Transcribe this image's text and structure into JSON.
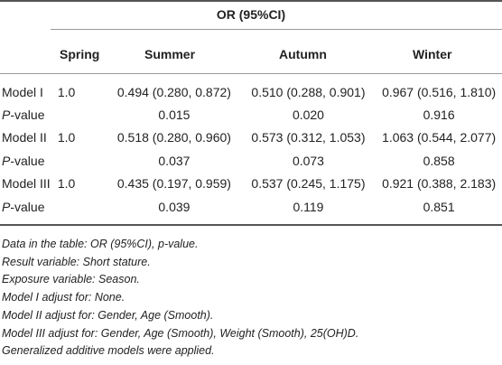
{
  "table": {
    "group_header": "OR (95%CI)",
    "columns": [
      "Spring",
      "Summer",
      "Autumn",
      "Winter"
    ],
    "rows": [
      {
        "label": "Model I",
        "cells": [
          "1.0",
          "0.494 (0.280, 0.872)",
          "0.510 (0.288, 0.901)",
          "0.967 (0.516, 1.810)"
        ]
      },
      {
        "label_prefix": "P",
        "label_suffix": "-value",
        "cells": [
          "",
          "0.015",
          "0.020",
          "0.916"
        ]
      },
      {
        "label": "Model II",
        "cells": [
          "1.0",
          "0.518 (0.280, 0.960)",
          "0.573 (0.312, 1.053)",
          "1.063 (0.544, 2.077)"
        ]
      },
      {
        "label_prefix": "P",
        "label_suffix": "-value",
        "cells": [
          "",
          "0.037",
          "0.073",
          "0.858"
        ]
      },
      {
        "label": "Model III",
        "cells": [
          "1.0",
          "0.435 (0.197, 0.959)",
          "0.537 (0.245, 1.175)",
          "0.921 (0.388, 2.183)"
        ]
      },
      {
        "label_prefix": "P",
        "label_suffix": "-value",
        "cells": [
          "",
          "0.039",
          "0.119",
          "0.851"
        ]
      }
    ]
  },
  "footnotes": [
    "Data in the table: OR (95%CI), p-value.",
    "Result variable: Short stature.",
    "Exposure variable: Season.",
    "Model I adjust for: None.",
    "Model II adjust for: Gender, Age (Smooth).",
    "Model III adjust for: Gender, Age (Smooth), Weight (Smooth), 25(OH)D.",
    "Generalized additive models were applied."
  ]
}
